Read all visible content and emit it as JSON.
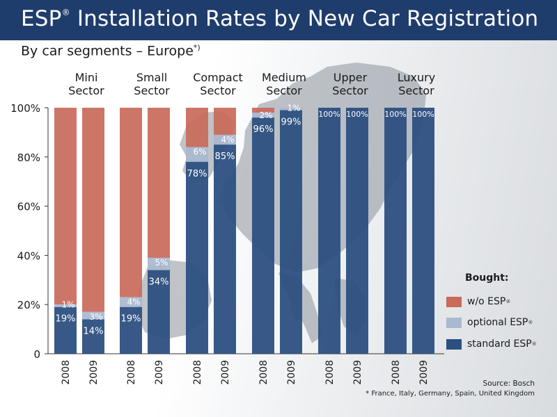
{
  "header": {
    "title": "ESP",
    "title_rest": " Installation Rates by New Car Registration",
    "title_mark": "®",
    "subtitle": "By car segments – Europe",
    "subtitle_mark": "*)"
  },
  "legend": {
    "title": "Bought:",
    "items": [
      {
        "label": "w/o ESP",
        "mark": "®",
        "color": "#c96a5a"
      },
      {
        "label": "optional ESP",
        "mark": "®",
        "color": "#a9b9cf"
      },
      {
        "label": "standard ESP",
        "mark": "®",
        "color": "#2c4f80"
      }
    ]
  },
  "source": "Source: Bosch",
  "footnote": "* France, Italy, Germany, Spain, United Kingdom",
  "colors": {
    "title_bar": "#1f3d6c",
    "standard": "#2c4f80",
    "optional": "#a9b9cf",
    "without": "#c96a5a",
    "map": "#9aa0a8"
  },
  "chart_data": {
    "type": "bar",
    "stacked": true,
    "ylim": [
      0,
      100
    ],
    "yticks": [
      "0",
      "20%",
      "40%",
      "60%",
      "80%",
      "100%"
    ],
    "group_labels": [
      [
        "Mini",
        "Sector"
      ],
      [
        "Small",
        "Sector"
      ],
      [
        "Compact",
        "Sector"
      ],
      [
        "Medium",
        "Sector"
      ],
      [
        "Upper",
        "Sector"
      ],
      [
        "Luxury",
        "Sector"
      ]
    ],
    "year_labels": [
      "2008",
      "2009"
    ],
    "series": [
      {
        "name": "standard ESP",
        "values": [
          [
            19,
            14
          ],
          [
            19,
            34
          ],
          [
            78,
            85
          ],
          [
            96,
            99
          ],
          [
            100,
            100
          ],
          [
            100,
            100
          ]
        ]
      },
      {
        "name": "optional ESP",
        "values": [
          [
            1,
            3
          ],
          [
            4,
            5
          ],
          [
            6,
            4
          ],
          [
            2,
            1
          ],
          [
            0,
            0
          ],
          [
            0,
            0
          ]
        ]
      },
      {
        "name": "w/o ESP",
        "values": [
          [
            80,
            83
          ],
          [
            77,
            61
          ],
          [
            16,
            11
          ],
          [
            2,
            0
          ],
          [
            0,
            0
          ],
          [
            0,
            0
          ]
        ]
      }
    ],
    "labels": {
      "standard": [
        [
          "19%",
          "14%"
        ],
        [
          "19%",
          "34%"
        ],
        [
          "78%",
          "85%"
        ],
        [
          "96%",
          "99%"
        ],
        [
          "100%",
          "100%"
        ],
        [
          "100%",
          "100%"
        ]
      ],
      "optional": [
        [
          "1%",
          "3%"
        ],
        [
          "4%",
          "5%"
        ],
        [
          "6%",
          "4%"
        ],
        [
          "2%",
          "1%"
        ],
        [
          "",
          ""
        ],
        [
          "",
          ""
        ]
      ]
    },
    "grid": false,
    "legend_position": "bottom-right"
  }
}
